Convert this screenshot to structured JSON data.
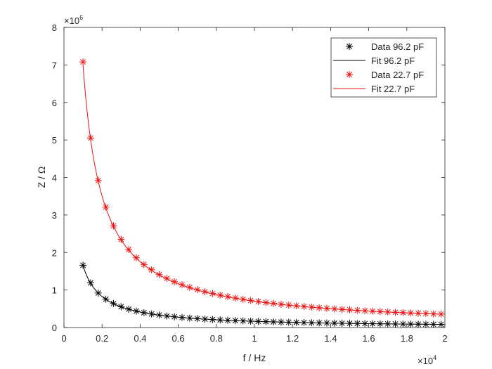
{
  "chart_data": {
    "type": "scatter",
    "xlabel": "f / Hz",
    "ylabel": "Z / Ω",
    "x_exponent_base": "×10",
    "x_exponent_power": "4",
    "y_exponent_base": "×10",
    "y_exponent_power": "6",
    "xlim": [
      0,
      20000
    ],
    "ylim": [
      0,
      8000000
    ],
    "x_ticks": [
      0,
      2000,
      4000,
      6000,
      8000,
      10000,
      12000,
      14000,
      16000,
      18000,
      20000
    ],
    "x_tick_labels": [
      "0",
      "0.2",
      "0.4",
      "0.6",
      "0.8",
      "1",
      "1.2",
      "1.4",
      "1.6",
      "1.8",
      "2"
    ],
    "y_ticks": [
      0,
      1000000,
      2000000,
      3000000,
      4000000,
      5000000,
      6000000,
      7000000,
      8000000
    ],
    "y_tick_labels": [
      "0",
      "1",
      "2",
      "3",
      "4",
      "5",
      "6",
      "7",
      "8"
    ],
    "grid": false,
    "legend_position": "top-right",
    "x_start_hz": 1000,
    "x_step_hz": 400,
    "series": [
      {
        "name": "Data 96.2 pF",
        "kind": "data",
        "marker": "asterisk",
        "color": "#000000",
        "x": [
          1000,
          1400,
          1800,
          2200,
          2600,
          3000,
          3400,
          3800,
          4200,
          4600,
          5000,
          5400,
          5800,
          6200,
          6600,
          7000,
          7400,
          7800,
          8200,
          8600,
          9000,
          9400,
          9800,
          10200,
          10600,
          11000,
          11400,
          11800,
          12200,
          12600,
          13000,
          13400,
          13800,
          14200,
          14600,
          15000,
          15400,
          15800,
          16200,
          16600,
          17000,
          17400,
          17800,
          18200,
          18600,
          19000,
          19400,
          19800
        ],
        "y": [
          1660000,
          1190000,
          920000,
          755000,
          640000,
          555000,
          490000,
          438000,
          396000,
          362000,
          333000,
          308000,
          287000,
          268000,
          252000,
          238000,
          225000,
          213000,
          203000,
          193000,
          185000,
          177000,
          170000,
          163000,
          157000,
          151000,
          146000,
          141000,
          136000,
          132000,
          128000,
          124000,
          120000,
          117000,
          113000,
          110000,
          108000,
          105000,
          102000,
          100000,
          98000,
          95000,
          93000,
          91000,
          89000,
          87000,
          85000,
          84000
        ]
      },
      {
        "name": "Fit 96.2 pF",
        "kind": "fit",
        "color": "#000000",
        "capacitance_pf": 96.2
      },
      {
        "name": "Data 22.7 pF",
        "kind": "data",
        "marker": "asterisk",
        "color": "#ee1111",
        "x": [
          1000,
          1400,
          1800,
          2200,
          2600,
          3000,
          3400,
          3800,
          4200,
          4600,
          5000,
          5400,
          5800,
          6200,
          6600,
          7000,
          7400,
          7800,
          8200,
          8600,
          9000,
          9400,
          9800,
          10200,
          10600,
          11000,
          11400,
          11800,
          12200,
          12600,
          13000,
          13400,
          13800,
          14200,
          14600,
          15000,
          15400,
          15800,
          16200,
          16600,
          17000,
          17400,
          17800,
          18200,
          18600,
          19000,
          19400,
          19800
        ],
        "y": [
          7080000,
          5050000,
          3920000,
          3210000,
          2710000,
          2350000,
          2080000,
          1860000,
          1680000,
          1540000,
          1410000,
          1310000,
          1220000,
          1140000,
          1070000,
          1010000,
          956000,
          907000,
          863000,
          823000,
          786000,
          752000,
          722000,
          694000,
          667000,
          643000,
          620000,
          599000,
          580000,
          561000,
          544000,
          528000,
          513000,
          498000,
          485000,
          472000,
          459000,
          448000,
          437000,
          426000,
          416000,
          407000,
          398000,
          389000,
          381000,
          373000,
          365000,
          358000
        ]
      },
      {
        "name": "Fit 22.7 pF",
        "kind": "fit",
        "color": "#ee1111",
        "capacitance_pf": 22.7
      }
    ]
  }
}
